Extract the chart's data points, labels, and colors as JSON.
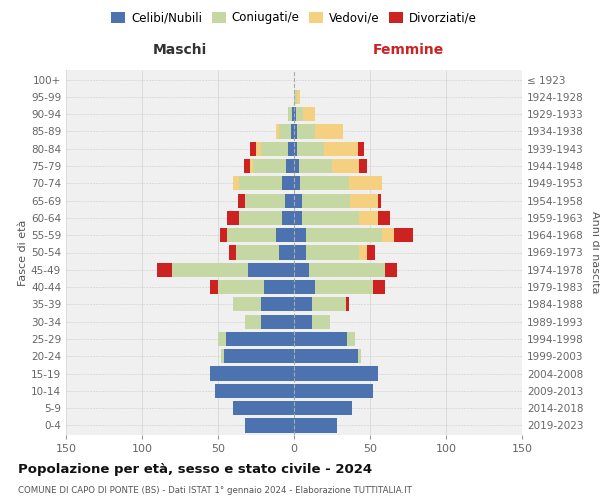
{
  "age_groups": [
    "0-4",
    "5-9",
    "10-14",
    "15-19",
    "20-24",
    "25-29",
    "30-34",
    "35-39",
    "40-44",
    "45-49",
    "50-54",
    "55-59",
    "60-64",
    "65-69",
    "70-74",
    "75-79",
    "80-84",
    "85-89",
    "90-94",
    "95-99",
    "100+"
  ],
  "birth_years": [
    "2019-2023",
    "2014-2018",
    "2009-2013",
    "2004-2008",
    "1999-2003",
    "1994-1998",
    "1989-1993",
    "1984-1988",
    "1979-1983",
    "1974-1978",
    "1969-1973",
    "1964-1968",
    "1959-1963",
    "1954-1958",
    "1949-1953",
    "1944-1948",
    "1939-1943",
    "1934-1938",
    "1929-1933",
    "1924-1928",
    "≤ 1923"
  ],
  "maschi": {
    "celibi": [
      32,
      40,
      52,
      55,
      46,
      45,
      22,
      22,
      20,
      30,
      10,
      12,
      8,
      6,
      8,
      5,
      4,
      2,
      1,
      0,
      0
    ],
    "coniugati": [
      0,
      0,
      0,
      0,
      2,
      5,
      10,
      18,
      30,
      50,
      28,
      32,
      28,
      26,
      28,
      22,
      18,
      8,
      3,
      0,
      0
    ],
    "vedovi": [
      0,
      0,
      0,
      0,
      0,
      0,
      0,
      0,
      0,
      0,
      0,
      0,
      0,
      0,
      4,
      2,
      3,
      2,
      0,
      0,
      0
    ],
    "divorziati": [
      0,
      0,
      0,
      0,
      0,
      0,
      0,
      0,
      5,
      10,
      5,
      5,
      8,
      5,
      0,
      4,
      4,
      0,
      0,
      0,
      0
    ]
  },
  "femmine": {
    "nubili": [
      28,
      38,
      52,
      55,
      42,
      35,
      12,
      12,
      14,
      10,
      8,
      8,
      5,
      5,
      4,
      3,
      2,
      2,
      1,
      0,
      0
    ],
    "coniugate": [
      0,
      0,
      0,
      0,
      2,
      5,
      12,
      22,
      38,
      50,
      35,
      50,
      38,
      32,
      32,
      22,
      18,
      12,
      5,
      2,
      0
    ],
    "vedove": [
      0,
      0,
      0,
      0,
      0,
      0,
      0,
      0,
      0,
      0,
      5,
      8,
      12,
      18,
      22,
      18,
      22,
      18,
      8,
      2,
      0
    ],
    "divorziate": [
      0,
      0,
      0,
      0,
      0,
      0,
      0,
      2,
      8,
      8,
      5,
      12,
      8,
      2,
      0,
      5,
      4,
      0,
      0,
      0,
      0
    ]
  },
  "colors": {
    "celibi": "#4c72b0",
    "coniugati": "#c5d8a4",
    "vedovi": "#f5d080",
    "divorziati": "#cc2222"
  },
  "xlim": 150,
  "title": "Popolazione per età, sesso e stato civile - 2024",
  "subtitle": "COMUNE DI CAPO DI PONTE (BS) - Dati ISTAT 1° gennaio 2024 - Elaborazione TUTTITALIA.IT",
  "xlabel_left": "Maschi",
  "xlabel_right": "Femmine",
  "ylabel_left": "Fasce di età",
  "ylabel_right": "Anni di nascita",
  "legend_labels": [
    "Celibi/Nubili",
    "Coniugati/e",
    "Vedovi/e",
    "Divorziati/e"
  ],
  "bg_color": "#ffffff",
  "plot_bg_color": "#f0f0f0"
}
